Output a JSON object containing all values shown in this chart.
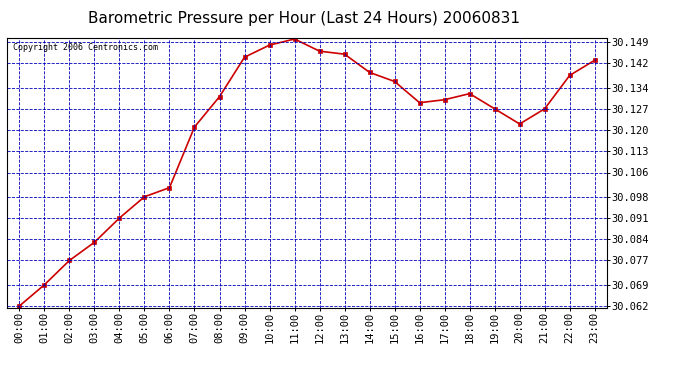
{
  "title": "Barometric Pressure per Hour (Last 24 Hours) 20060831",
  "copyright": "Copyright 2006 Centronics.com",
  "x_labels": [
    "00:00",
    "01:00",
    "02:00",
    "03:00",
    "04:00",
    "05:00",
    "06:00",
    "07:00",
    "08:00",
    "09:00",
    "10:00",
    "11:00",
    "12:00",
    "13:00",
    "14:00",
    "15:00",
    "16:00",
    "17:00",
    "18:00",
    "19:00",
    "20:00",
    "21:00",
    "22:00",
    "23:00"
  ],
  "y_values": [
    30.062,
    30.069,
    30.077,
    30.083,
    30.091,
    30.098,
    30.101,
    30.121,
    30.131,
    30.144,
    30.148,
    30.15,
    30.146,
    30.145,
    30.139,
    30.136,
    30.129,
    30.13,
    30.132,
    30.127,
    30.122,
    30.127,
    30.138,
    30.143
  ],
  "y_min": 30.062,
  "y_max": 30.15,
  "y_ticks": [
    30.062,
    30.069,
    30.077,
    30.084,
    30.091,
    30.098,
    30.106,
    30.113,
    30.12,
    30.127,
    30.134,
    30.142,
    30.149
  ],
  "line_color": "#cc0000",
  "marker_color": "#cc0000",
  "grid_color": "#0000bb",
  "bg_color": "#ffffff",
  "plot_bg_color": "#ffffff",
  "title_fontsize": 11,
  "copyright_fontsize": 6,
  "tick_fontsize": 7.5,
  "border_color": "#000000"
}
